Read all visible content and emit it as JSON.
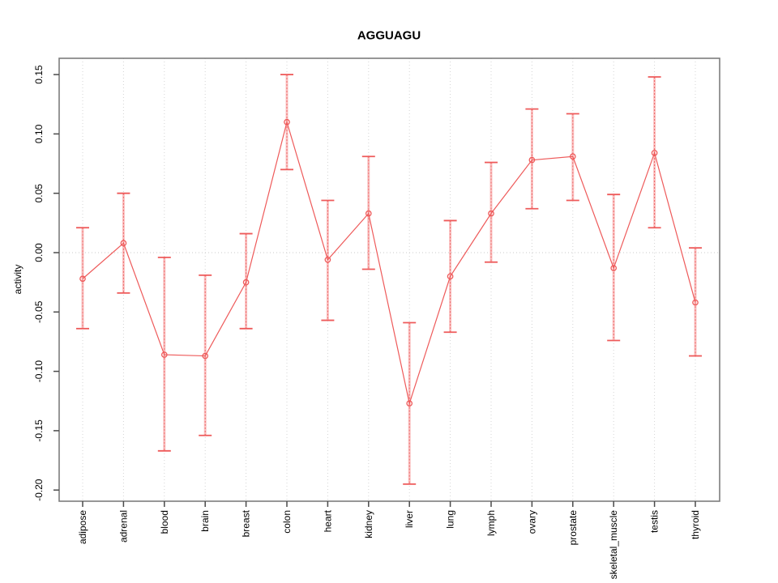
{
  "title": "AGGUAGU",
  "chart_data": {
    "type": "line",
    "title": "AGGUAGU",
    "xlabel": "",
    "ylabel": "activity",
    "ylim": [
      -0.22,
      0.17
    ],
    "y_tick_labels": [
      "-0.20",
      "-0.15",
      "-0.10",
      "-0.05",
      "0.00",
      "0.05",
      "0.10",
      "0.15"
    ],
    "grid": "dotted vertical gridline at each category; dotted horizontal reference line at 0.00",
    "legend_position": "none",
    "point_style": "open-circle",
    "categories": [
      "adipose",
      "adrenal",
      "blood",
      "brain",
      "breast",
      "colon",
      "heart",
      "kidney",
      "liver",
      "lung",
      "lymph",
      "ovary",
      "prostate",
      "skeletal_muscle",
      "testis",
      "thyroid"
    ],
    "series": [
      {
        "name": "activity",
        "values": [
          -0.022,
          0.008,
          -0.086,
          -0.087,
          -0.025,
          0.11,
          -0.006,
          0.033,
          -0.127,
          -0.02,
          0.033,
          0.078,
          0.081,
          -0.013,
          0.084,
          -0.042
        ],
        "error_low": [
          -0.064,
          -0.034,
          -0.167,
          -0.154,
          -0.064,
          0.07,
          -0.057,
          -0.014,
          -0.195,
          -0.067,
          -0.008,
          0.037,
          0.044,
          -0.074,
          0.021,
          -0.087
        ],
        "error_high": [
          0.021,
          0.05,
          -0.004,
          -0.019,
          0.016,
          0.15,
          0.044,
          0.081,
          -0.059,
          0.027,
          0.076,
          0.121,
          0.117,
          0.049,
          0.148,
          0.004
        ]
      }
    ],
    "colors": {
      "series_line": "#ee5a5a",
      "error_band": "#f87c7c",
      "gridline": "#d4d4d4",
      "zero_line": "#c9c9c9",
      "plot_border": "#7d7d7d",
      "tick": "#4a4a4a",
      "text": "#000000",
      "background": "#ffffff"
    }
  }
}
